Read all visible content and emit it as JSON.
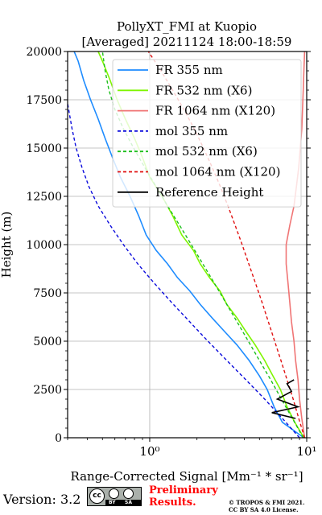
{
  "chart_data": {
    "type": "line",
    "title": "PollyXT_FMI at Kuopio",
    "subtitle": "[Averaged] 20211124 18:00-18:59",
    "xlabel": "Range-Corrected Signal [Mm⁻¹ * sr⁻¹]",
    "ylabel": "Height (m)",
    "xscale": "log",
    "xlim": [
      0.3,
      10
    ],
    "ylim": [
      0,
      20000
    ],
    "x_ticks": [
      {
        "value": 1,
        "label": "10⁰"
      },
      {
        "value": 10,
        "label": "10¹"
      }
    ],
    "y_ticks": [
      0,
      2500,
      5000,
      7500,
      10000,
      12500,
      15000,
      17500,
      20000
    ],
    "y_tick_labels": [
      "0",
      "2500",
      "5000",
      "7500",
      "10000",
      "12500",
      "15000",
      "17500",
      "20000"
    ],
    "grid": true,
    "legend_position": "upper-right",
    "series": [
      {
        "name": "FR 355 nm",
        "color": "#1e8cff",
        "style": "solid",
        "points": [
          [
            9.6,
            0
          ],
          [
            7.0,
            800
          ],
          [
            6.2,
            1600
          ],
          [
            5.6,
            2500
          ],
          [
            5.0,
            3200
          ],
          [
            4.3,
            4000
          ],
          [
            3.6,
            4800
          ],
          [
            3.0,
            5500
          ],
          [
            2.5,
            6200
          ],
          [
            2.1,
            6900
          ],
          [
            1.8,
            7600
          ],
          [
            1.5,
            8300
          ],
          [
            1.3,
            9000
          ],
          [
            1.1,
            9700
          ],
          [
            0.95,
            10500
          ],
          [
            0.85,
            11500
          ],
          [
            0.75,
            12500
          ],
          [
            0.65,
            13500
          ],
          [
            0.58,
            14500
          ],
          [
            0.52,
            15500
          ],
          [
            0.47,
            16500
          ],
          [
            0.42,
            17500
          ],
          [
            0.38,
            18500
          ],
          [
            0.35,
            19500
          ],
          [
            0.33,
            20000
          ]
        ]
      },
      {
        "name": "FR 532 nm (X6)",
        "color": "#7ff500",
        "style": "solid",
        "points": [
          [
            9.6,
            0
          ],
          [
            8.4,
            800
          ],
          [
            7.5,
            1600
          ],
          [
            6.8,
            2500
          ],
          [
            6.1,
            3200
          ],
          [
            5.4,
            4000
          ],
          [
            4.7,
            4800
          ],
          [
            4.1,
            5500
          ],
          [
            3.6,
            6200
          ],
          [
            3.1,
            6900
          ],
          [
            2.8,
            7600
          ],
          [
            2.4,
            8300
          ],
          [
            2.1,
            9000
          ],
          [
            1.9,
            9700
          ],
          [
            1.6,
            10500
          ],
          [
            1.4,
            11500
          ],
          [
            1.2,
            12500
          ],
          [
            1.0,
            13500
          ],
          [
            0.9,
            14500
          ],
          [
            0.8,
            15500
          ],
          [
            0.7,
            16500
          ],
          [
            0.62,
            17500
          ],
          [
            0.56,
            18500
          ],
          [
            0.5,
            19500
          ],
          [
            0.47,
            20000
          ]
        ]
      },
      {
        "name": "FR 1064 nm (X120)",
        "color": "#f07575",
        "style": "solid",
        "points": [
          [
            9.7,
            0
          ],
          [
            9.3,
            1000
          ],
          [
            9.0,
            2000
          ],
          [
            8.8,
            3000
          ],
          [
            8.5,
            4000
          ],
          [
            8.3,
            5000
          ],
          [
            8.0,
            6000
          ],
          [
            7.8,
            7000
          ],
          [
            7.6,
            8000
          ],
          [
            7.4,
            9000
          ],
          [
            7.4,
            10000
          ],
          [
            7.8,
            11000
          ],
          [
            8.3,
            12000
          ],
          [
            8.6,
            13000
          ],
          [
            8.9,
            14000
          ],
          [
            9.1,
            15000
          ],
          [
            9.3,
            16000
          ],
          [
            9.4,
            17000
          ],
          [
            9.5,
            18000
          ],
          [
            9.6,
            19000
          ],
          [
            9.7,
            20000
          ]
        ]
      },
      {
        "name": "mol 355 nm",
        "color": "#0a0adc",
        "style": "dashed",
        "points": [
          [
            9.0,
            0
          ],
          [
            7.0,
            1000
          ],
          [
            5.4,
            2000
          ],
          [
            4.1,
            3000
          ],
          [
            3.1,
            4000
          ],
          [
            2.35,
            5000
          ],
          [
            1.8,
            6000
          ],
          [
            1.38,
            7000
          ],
          [
            1.07,
            8000
          ],
          [
            0.84,
            9000
          ],
          [
            0.68,
            10000
          ],
          [
            0.56,
            11000
          ],
          [
            0.47,
            12000
          ],
          [
            0.41,
            13000
          ],
          [
            0.37,
            14000
          ],
          [
            0.34,
            15000
          ],
          [
            0.32,
            16000
          ],
          [
            0.3,
            17300
          ]
        ]
      },
      {
        "name": "mol 532 nm (X6)",
        "color": "#1cbf1c",
        "style": "dashed",
        "points": [
          [
            9.5,
            0
          ],
          [
            8.1,
            1000
          ],
          [
            6.9,
            2000
          ],
          [
            5.9,
            3000
          ],
          [
            5.0,
            4000
          ],
          [
            4.25,
            5000
          ],
          [
            3.6,
            6000
          ],
          [
            3.05,
            7000
          ],
          [
            2.58,
            8000
          ],
          [
            2.18,
            9000
          ],
          [
            1.84,
            10000
          ],
          [
            1.55,
            11000
          ],
          [
            1.3,
            12000
          ],
          [
            1.1,
            13000
          ],
          [
            0.93,
            14000
          ],
          [
            0.79,
            15000
          ],
          [
            0.68,
            16000
          ],
          [
            0.6,
            17000
          ],
          [
            0.55,
            18000
          ],
          [
            0.52,
            19000
          ],
          [
            0.5,
            20000
          ]
        ]
      },
      {
        "name": "mol 1064 nm (X120)",
        "color": "#e01010",
        "style": "dashed",
        "points": [
          [
            9.7,
            0
          ],
          [
            8.9,
            1000
          ],
          [
            8.2,
            2000
          ],
          [
            7.5,
            3000
          ],
          [
            6.85,
            4000
          ],
          [
            6.25,
            5000
          ],
          [
            5.7,
            6000
          ],
          [
            5.2,
            7000
          ],
          [
            4.72,
            8000
          ],
          [
            4.28,
            9000
          ],
          [
            3.88,
            10000
          ],
          [
            3.5,
            11000
          ],
          [
            3.15,
            12000
          ],
          [
            2.82,
            13000
          ],
          [
            2.5,
            14000
          ],
          [
            2.2,
            15000
          ],
          [
            1.92,
            16000
          ],
          [
            1.65,
            17000
          ],
          [
            1.4,
            18000
          ],
          [
            1.18,
            19000
          ],
          [
            0.98,
            20000
          ]
        ]
      },
      {
        "name": "Reference Height",
        "color": "#000000",
        "style": "solid",
        "points": [
          [
            8.5,
            1000
          ],
          [
            6.0,
            1300
          ],
          [
            8.8,
            1600
          ],
          [
            6.5,
            2000
          ],
          [
            8.0,
            2400
          ],
          [
            7.5,
            2800
          ],
          [
            8.3,
            3000
          ]
        ]
      }
    ]
  },
  "footer": {
    "version": "Version: 3.2",
    "license_badge": "CC BY SA",
    "badge_by": "BY",
    "badge_sa": "SA",
    "preliminary_line1": "Preliminary",
    "preliminary_line2": "Results.",
    "copyright_line1": "© TROPOS & FMI 2021.",
    "copyright_line2": "CC BY SA 4.0 License."
  }
}
